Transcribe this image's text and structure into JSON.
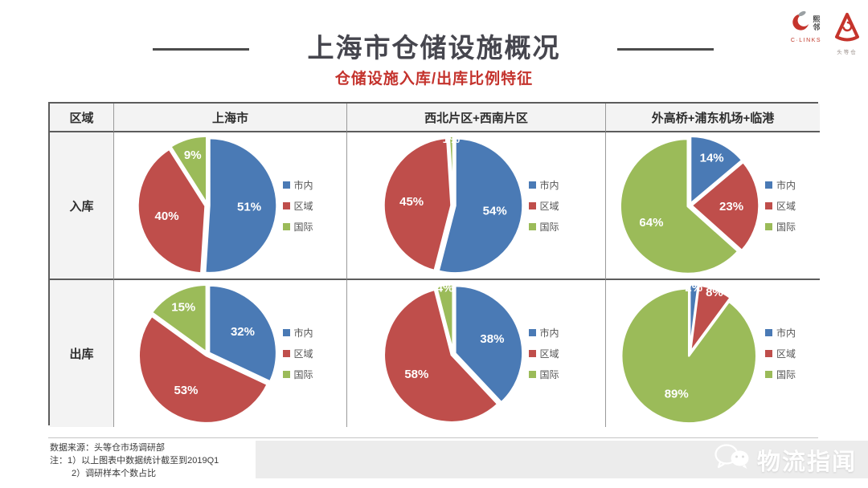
{
  "page": {
    "title": "上海市仓储设施概况",
    "subtitle": "仓储设施入库/出库比例特征"
  },
  "logos": {
    "clinks_chars_line1": "熙",
    "clinks_chars_line2": "邻",
    "clinks_wordmark": "C·LINKS",
    "toudengcang_label": "头等仓"
  },
  "table": {
    "corner_header": "区域",
    "column_headers": [
      "上海市",
      "西北片区+西南片区",
      "外高桥+浦东机场+临港"
    ],
    "row_headers": [
      "入库",
      "出库"
    ]
  },
  "colors": {
    "series_blue": "#4a7ab5",
    "series_red": "#bf4e4b",
    "series_green": "#9bbb59",
    "subtitle_red": "#c4332d",
    "title_gray": "#46464e"
  },
  "legend": {
    "position": "right",
    "items": [
      {
        "label": "市内",
        "color": "#4a7ab5"
      },
      {
        "label": "区域",
        "color": "#bf4e4b"
      },
      {
        "label": "国际",
        "color": "#9bbb59"
      }
    ]
  },
  "chart_data": [
    {
      "type": "pie",
      "row": "入库",
      "region": "上海市",
      "categories": [
        "市内",
        "区域",
        "国际"
      ],
      "values": [
        51,
        40,
        9
      ],
      "unit": "%",
      "legend_position": "right"
    },
    {
      "type": "pie",
      "row": "入库",
      "region": "西北片区+西南片区",
      "categories": [
        "市内",
        "区域",
        "国际"
      ],
      "values": [
        54,
        45,
        1
      ],
      "unit": "%",
      "legend_position": "right"
    },
    {
      "type": "pie",
      "row": "入库",
      "region": "外高桥+浦东机场+临港",
      "categories": [
        "市内",
        "区域",
        "国际"
      ],
      "values": [
        14,
        23,
        64
      ],
      "unit": "%",
      "legend_position": "right"
    },
    {
      "type": "pie",
      "row": "出库",
      "region": "上海市",
      "categories": [
        "市内",
        "区域",
        "国际"
      ],
      "values": [
        32,
        53,
        15
      ],
      "unit": "%",
      "legend_position": "right"
    },
    {
      "type": "pie",
      "row": "出库",
      "region": "西北片区+西南片区",
      "categories": [
        "市内",
        "区域",
        "国际"
      ],
      "values": [
        38,
        58,
        4
      ],
      "unit": "%",
      "legend_position": "right"
    },
    {
      "type": "pie",
      "row": "出库",
      "region": "外高桥+浦东机场+临港",
      "categories": [
        "市内",
        "区域",
        "国际"
      ],
      "values": [
        2,
        8,
        89
      ],
      "unit": "%",
      "legend_position": "right"
    }
  ],
  "footer": {
    "source_line": "数据来源：头等仓市场调研部",
    "note_line1": "注：1）以上图表中数据统计截至到2019Q1",
    "note_line2": "2）调研样本个数占比"
  },
  "watermark": {
    "text": "物流指闻"
  }
}
